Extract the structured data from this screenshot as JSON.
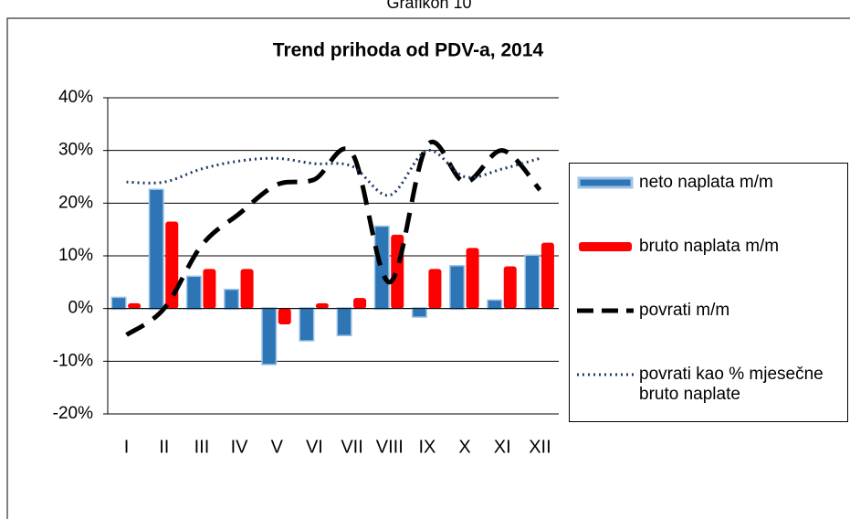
{
  "caption": "Grafikon 10",
  "chart_data": {
    "type": "bar-line",
    "title": "Trend prihoda od PDV-a, 2014",
    "categories": [
      "I",
      "II",
      "III",
      "IV",
      "V",
      "VI",
      "VII",
      "VIII",
      "IX",
      "X",
      "XI",
      "XII"
    ],
    "series": [
      {
        "name": "neto naplata m/m",
        "type": "bar",
        "color": "#2e75b6",
        "values": [
          2,
          22.5,
          6,
          3.5,
          -10.5,
          -6,
          -5,
          15.5,
          -1.5,
          8,
          1.5,
          10
        ]
      },
      {
        "name": "bruto naplata m/m",
        "type": "bar",
        "color": "#ff0000",
        "values": [
          1,
          16.5,
          7.5,
          7.5,
          -3,
          1,
          2,
          14,
          7.5,
          11.5,
          8,
          12.5
        ]
      },
      {
        "name": "povrati m/m",
        "type": "line",
        "style": "dashed",
        "color": "#000000",
        "values": [
          -5,
          0,
          12,
          18,
          23.5,
          24.5,
          29.5,
          5,
          31,
          24,
          30,
          22.5
        ]
      },
      {
        "name": "povrati kao % mjesečne bruto naplate",
        "type": "line",
        "style": "dotted",
        "color": "#1f3864",
        "values": [
          24,
          24,
          26.5,
          28,
          28.5,
          27.5,
          27,
          21.5,
          30,
          25,
          26.5,
          28.5
        ]
      }
    ],
    "ylim": [
      -20,
      40
    ],
    "yticks": [
      {
        "value": -20,
        "label": "-20%"
      },
      {
        "value": -10,
        "label": "-10%"
      },
      {
        "value": 0,
        "label": "0%"
      },
      {
        "value": 10,
        "label": "10%"
      },
      {
        "value": 20,
        "label": "20%"
      },
      {
        "value": 30,
        "label": "30%"
      },
      {
        "value": 40,
        "label": "40%"
      }
    ],
    "grid": true,
    "legend": "right"
  }
}
